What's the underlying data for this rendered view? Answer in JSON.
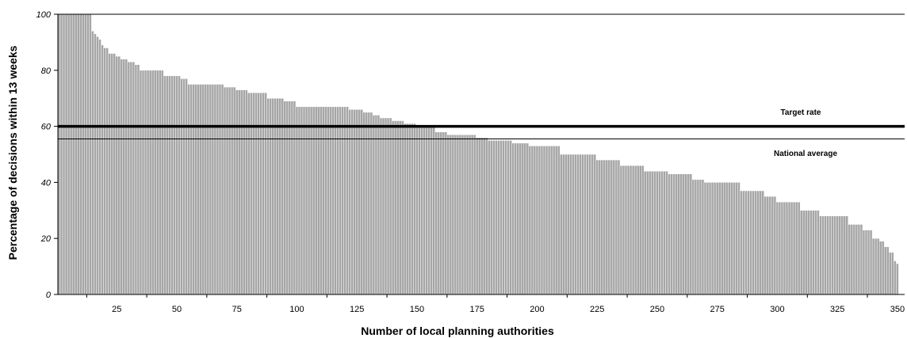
{
  "chart_data": {
    "type": "bar",
    "title": "",
    "xlabel": "Number of local planning authorities",
    "ylabel": "Percentage of decisions within 13 weeks",
    "xlim": [
      0.5,
      353
    ],
    "ylim": [
      0,
      100
    ],
    "x_ticks": [
      25,
      50,
      75,
      100,
      125,
      150,
      175,
      200,
      225,
      250,
      275,
      300,
      325,
      350
    ],
    "y_ticks": [
      0,
      20,
      40,
      60,
      80,
      100
    ],
    "y_tick_labels": [
      "0",
      "20",
      "40",
      "60",
      "80",
      "100"
    ],
    "grid": false,
    "bar_color": "#a6a6a6",
    "bar_edge_color": "#ffffff",
    "bar_profile": [
      [
        1,
        100
      ],
      [
        14,
        100
      ],
      [
        15,
        94
      ],
      [
        16,
        93
      ],
      [
        17,
        92
      ],
      [
        18,
        91
      ],
      [
        19,
        89
      ],
      [
        20,
        88
      ],
      [
        22,
        86
      ],
      [
        25,
        85
      ],
      [
        27,
        84
      ],
      [
        30,
        83
      ],
      [
        33,
        82
      ],
      [
        35,
        80
      ],
      [
        45,
        78
      ],
      [
        52,
        77
      ],
      [
        55,
        75
      ],
      [
        70,
        74
      ],
      [
        75,
        73
      ],
      [
        80,
        72
      ],
      [
        88,
        70
      ],
      [
        95,
        69
      ],
      [
        100,
        67
      ],
      [
        122,
        66
      ],
      [
        128,
        65
      ],
      [
        132,
        64
      ],
      [
        135,
        63
      ],
      [
        140,
        62
      ],
      [
        145,
        61
      ],
      [
        150,
        60
      ],
      [
        158,
        58
      ],
      [
        163,
        57
      ],
      [
        175,
        56
      ],
      [
        180,
        55
      ],
      [
        190,
        54
      ],
      [
        197,
        53
      ],
      [
        210,
        50
      ],
      [
        225,
        48
      ],
      [
        235,
        46
      ],
      [
        245,
        44
      ],
      [
        255,
        43
      ],
      [
        265,
        41
      ],
      [
        270,
        40
      ],
      [
        285,
        37
      ],
      [
        295,
        35
      ],
      [
        300,
        33
      ],
      [
        310,
        30
      ],
      [
        318,
        28
      ],
      [
        330,
        25
      ],
      [
        336,
        23
      ],
      [
        340,
        20
      ],
      [
        343,
        19
      ],
      [
        345,
        17
      ],
      [
        347,
        15
      ],
      [
        349,
        12
      ],
      [
        350,
        11
      ]
    ],
    "reference_lines": [
      {
        "name": "Target rate",
        "value": 60,
        "color": "#000000",
        "weight": "thick"
      },
      {
        "name": "National average",
        "value": 55.5,
        "color": "#000000",
        "weight": "thin"
      }
    ]
  }
}
